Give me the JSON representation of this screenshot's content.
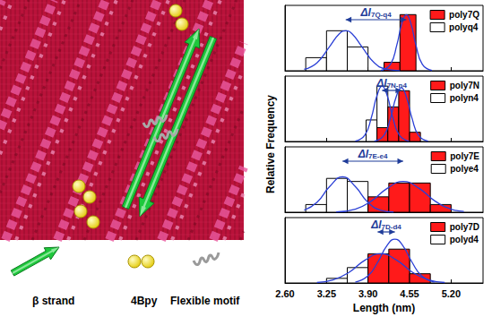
{
  "image_legend": [
    {
      "label": "β strand"
    },
    {
      "label": "4Bpy"
    },
    {
      "label": "Flexible motif"
    }
  ],
  "ylabel": "Relative Frequency",
  "chart_data": [
    {
      "type": "histogram",
      "xlim": [
        2.6,
        5.7
      ],
      "xticks": [
        {
          "value": 2.6,
          "label": "2.60"
        },
        {
          "value": 3.25,
          "label": "3.25"
        },
        {
          "value": 3.9,
          "label": "3.90"
        },
        {
          "value": 4.55,
          "label": "4.55"
        },
        {
          "value": 5.2,
          "label": "5.20"
        }
      ],
      "ylim": [
        0,
        0.85
      ],
      "tick_labels": false,
      "legend": "upper right",
      "grid": false,
      "series": [
        {
          "name": "poly7Q",
          "color": "#ff1a1a",
          "bins": [
            4.15,
            4.4,
            4.65
          ],
          "counts": [
            0.11,
            0.73
          ],
          "fit": {
            "color": "#2a3fd6",
            "x": [
              4.1,
              4.25,
              4.35,
              4.43,
              4.5,
              4.57,
              4.65,
              4.75,
              4.9
            ],
            "y": [
              0.003,
              0.083,
              0.334,
              0.616,
              0.73,
              0.616,
              0.334,
              0.083,
              0.003
            ]
          }
        },
        {
          "name": "polyq4",
          "color": "#ffffff",
          "bins": [
            2.925,
            3.25,
            3.575,
            3.9
          ],
          "counts": [
            0.17,
            0.52,
            0.31
          ],
          "fit": {
            "color": "#2a3fd6",
            "x": [
              2.9,
              3.1,
              3.3,
              3.45,
              3.55,
              3.65,
              3.8,
              4.0,
              4.2,
              4.4
            ],
            "y": [
              0.018,
              0.103,
              0.316,
              0.48,
              0.52,
              0.48,
              0.316,
              0.103,
              0.018,
              0.002
            ]
          }
        }
      ],
      "annotation": {
        "text": "Δl",
        "subscript": "7Q-q4",
        "from": 3.55,
        "to": 4.5,
        "color": "#1f3c99"
      }
    },
    {
      "type": "histogram",
      "xlim": [
        2.6,
        5.7
      ],
      "xticks": [
        {
          "value": 2.6,
          "label": "2.60"
        },
        {
          "value": 3.25,
          "label": "3.25"
        },
        {
          "value": 3.9,
          "label": "3.90"
        },
        {
          "value": 4.55,
          "label": "4.55"
        },
        {
          "value": 5.2,
          "label": "5.20"
        }
      ],
      "ylim": [
        0,
        0.85
      ],
      "tick_labels": false,
      "legend": "upper right",
      "grid": false,
      "series": [
        {
          "name": "poly7N",
          "color": "#ff1a1a",
          "bins": [
            4.04,
            4.21,
            4.38,
            4.55,
            4.72
          ],
          "counts": [
            0.18,
            0.45,
            0.66,
            0.12
          ],
          "fit": {
            "color": "#2a3fd6",
            "x": [
              4.0,
              4.15,
              4.25,
              4.34,
              4.42,
              4.5,
              4.59,
              4.69,
              4.84
            ],
            "y": [
              0.004,
              0.081,
              0.298,
              0.58,
              0.7,
              0.58,
              0.298,
              0.081,
              0.004
            ]
          }
        },
        {
          "name": "polyn4",
          "color": "#ffffff",
          "bins": [
            3.87,
            4.04,
            4.21,
            4.38
          ],
          "counts": [
            0.28,
            0.72,
            0.3
          ],
          "fit": {
            "color": "#2a3fd6",
            "x": [
              3.7,
              3.85,
              3.95,
              4.04,
              4.12,
              4.2,
              4.29,
              4.39,
              4.54
            ],
            "y": [
              0.004,
              0.083,
              0.306,
              0.596,
              0.72,
              0.596,
              0.306,
              0.083,
              0.004
            ]
          }
        }
      ],
      "annotation": {
        "text": "Δl",
        "subscript": "7N-n4",
        "from": 4.12,
        "to": 4.42,
        "color": "#1f3c99"
      }
    },
    {
      "type": "histogram",
      "xlim": [
        2.6,
        5.7
      ],
      "xticks": [
        {
          "value": 2.6,
          "label": "2.60"
        },
        {
          "value": 3.25,
          "label": "3.25"
        },
        {
          "value": 3.9,
          "label": "3.90"
        },
        {
          "value": 4.55,
          "label": "4.55"
        },
        {
          "value": 5.2,
          "label": "5.20"
        }
      ],
      "ylim": [
        0,
        0.85
      ],
      "tick_labels": false,
      "legend": "upper right",
      "grid": false,
      "series": [
        {
          "name": "poly7E",
          "color": "#ff1a1a",
          "bins": [
            3.9,
            4.225,
            4.55,
            4.875,
            5.2
          ],
          "counts": [
            0.2,
            0.38,
            0.38,
            0.1
          ],
          "fit": {
            "color": "#2a3fd6",
            "x": [
              3.4,
              3.7,
              3.95,
              4.2,
              4.45,
              4.7,
              4.95,
              5.2,
              5.4
            ],
            "y": [
              0.004,
              0.04,
              0.144,
              0.31,
              0.4,
              0.31,
              0.144,
              0.04,
              0.01
            ]
          }
        },
        {
          "name": "polye4",
          "color": "#ffffff",
          "bins": [
            2.925,
            3.25,
            3.575,
            3.9,
            4.225
          ],
          "counts": [
            0.1,
            0.44,
            0.4,
            0.05
          ],
          "fit": {
            "color": "#2a3fd6",
            "x": [
              2.9,
              3.1,
              3.3,
              3.5,
              3.7,
              3.9,
              4.1,
              4.3
            ],
            "y": [
              0.026,
              0.128,
              0.334,
              0.46,
              0.334,
              0.128,
              0.026,
              0.003
            ]
          }
        }
      ],
      "annotation": {
        "text": "Δl",
        "subscript": "7E-e4",
        "from": 3.5,
        "to": 4.45,
        "color": "#1f3c99"
      }
    },
    {
      "type": "histogram",
      "xlabel": "Length (nm)",
      "xlim": [
        2.6,
        5.7
      ],
      "xticks": [
        {
          "value": 2.6,
          "label": "2.60"
        },
        {
          "value": 3.25,
          "label": "3.25"
        },
        {
          "value": 3.9,
          "label": "3.90"
        },
        {
          "value": 4.55,
          "label": "4.55"
        },
        {
          "value": 5.2,
          "label": "5.20"
        }
      ],
      "ylim": [
        0,
        0.85
      ],
      "tick_labels": "x",
      "legend": "upper right",
      "grid": false,
      "series": [
        {
          "name": "poly7D",
          "color": "#ff1a1a",
          "bins": [
            3.9,
            4.225,
            4.55,
            4.875
          ],
          "counts": [
            0.38,
            0.44,
            0.12
          ],
          "fit": {
            "color": "#2a3fd6",
            "x": [
              3.7,
              3.9,
              4.05,
              4.2,
              4.32,
              4.44,
              4.59,
              4.74,
              4.94
            ],
            "y": [
              0.011,
              0.092,
              0.268,
              0.491,
              0.57,
              0.491,
              0.268,
              0.092,
              0.011
            ]
          }
        },
        {
          "name": "polyd4",
          "color": "#ffffff",
          "bins": [
            3.25,
            3.575,
            3.9,
            4.225,
            4.55
          ],
          "counts": [
            0.06,
            0.2,
            0.36,
            0.3
          ],
          "fit": {
            "color": "#2a3fd6",
            "x": [
              3.1,
              3.35,
              3.6,
              3.85,
              4.1,
              4.35,
              4.6,
              4.85,
              5.1
            ],
            "y": [
              0.006,
              0.038,
              0.137,
              0.295,
              0.38,
              0.295,
              0.137,
              0.038,
              0.006
            ]
          }
        }
      ],
      "annotation": {
        "text": "Δl",
        "subscript": "7D-d4",
        "from": 4.05,
        "to": 4.32,
        "color": "#1f3c99"
      }
    }
  ]
}
